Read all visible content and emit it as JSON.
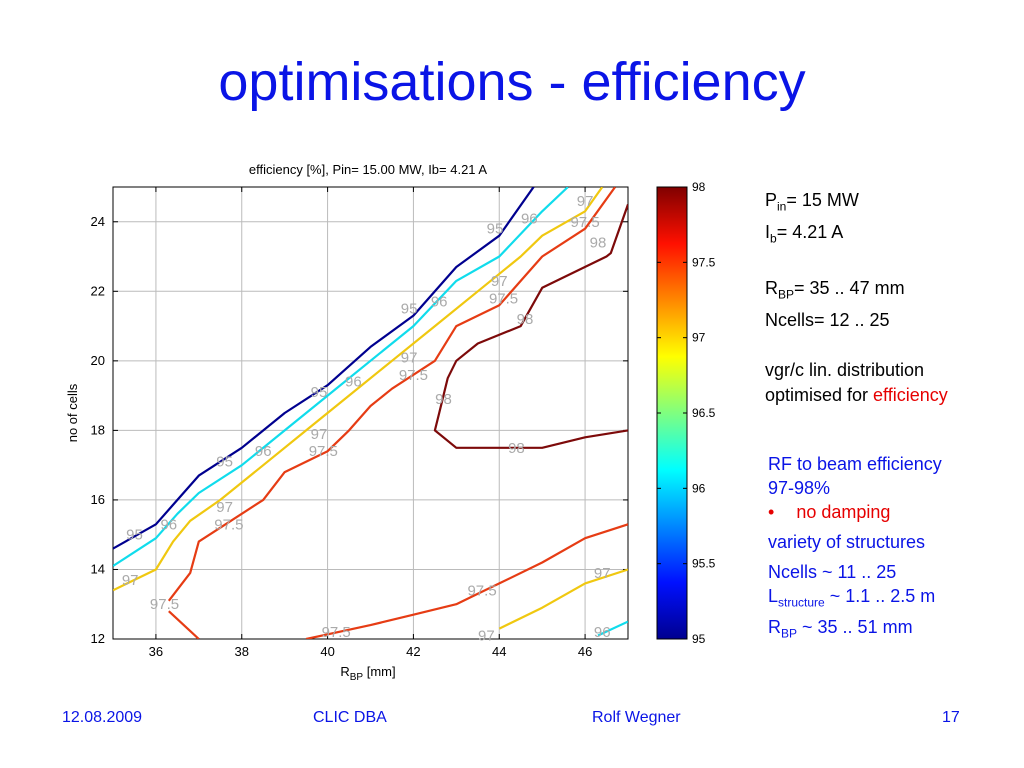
{
  "slide": {
    "title": "optimisations - efficiency",
    "footer": {
      "date": "12.08.2009",
      "event": "CLIC DBA",
      "author": "Rolf Wegner",
      "page": "17"
    }
  },
  "params": {
    "pin_label": "P",
    "pin_sub": "in",
    "pin_value": "= 15 MW",
    "ib_label": "I",
    "ib_sub": "b",
    "ib_value": "= 4.21 A",
    "rbp_label": "R",
    "rbp_sub": "BP",
    "rbp_value": "= 35 .. 47 mm",
    "ncells": "Ncells= 12 .. 25",
    "vgr": "vgr/c  lin. distribution",
    "optimised_prefix": "optimised for ",
    "optimised_target": "efficiency"
  },
  "notes": {
    "line1": "RF to beam efficiency",
    "line2": "97-98%",
    "bullet_marker": "•",
    "bullet": "no damping",
    "line3": "variety of structures",
    "line4": "Ncells ~ 11 .. 25",
    "lstruct_label": "L",
    "lstruct_sub": "structure",
    "lstruct_value": " ~ 1.1 .. 2.5 m",
    "rbp_label": "R",
    "rbp_sub": "BP",
    "rbp_value": " ~ 35 .. 51 mm"
  },
  "chart_data": {
    "type": "contour",
    "title": "efficiency [%],  Pin= 15.00 MW,  Ib= 4.21 A",
    "xlabel": "R",
    "xlabel_sub": "BP",
    "xlabel_unit": " [mm]",
    "ylabel": "no of cells",
    "xlim": [
      35,
      47
    ],
    "ylim": [
      12,
      25
    ],
    "xticks": [
      36,
      38,
      40,
      42,
      44,
      46
    ],
    "yticks": [
      12,
      14,
      16,
      18,
      20,
      22,
      24
    ],
    "grid": true,
    "colorbar": {
      "min": 95,
      "max": 98,
      "ticks": [
        "95",
        "95.5",
        "96",
        "96.5",
        "97",
        "97.5",
        "98"
      ]
    },
    "series": [
      {
        "level": "95",
        "color": "#00008f",
        "segments": [
          [
            [
              35,
              14.6
            ],
            [
              36,
              15.3
            ],
            [
              36.5,
              16
            ],
            [
              37,
              16.7
            ],
            [
              38,
              17.5
            ],
            [
              39,
              18.5
            ],
            [
              40,
              19.3
            ],
            [
              41,
              20.4
            ],
            [
              42,
              21.3
            ],
            [
              43,
              22.7
            ],
            [
              44,
              23.6
            ],
            [
              44.8,
              25
            ]
          ]
        ]
      },
      {
        "level": "96",
        "color": "#10dcec",
        "segments": [
          [
            [
              35,
              14.1
            ],
            [
              36,
              14.9
            ],
            [
              36.5,
              15.6
            ],
            [
              37,
              16.2
            ],
            [
              38,
              17
            ],
            [
              39,
              18
            ],
            [
              40,
              19
            ],
            [
              41,
              20
            ],
            [
              42,
              21
            ],
            [
              43,
              22.3
            ],
            [
              44,
              23
            ],
            [
              45,
              24.3
            ],
            [
              45.6,
              25
            ]
          ]
        ]
      },
      {
        "level": "97",
        "color": "#f0c810",
        "segments": [
          [
            [
              35,
              13.4
            ],
            [
              36,
              14
            ],
            [
              36.4,
              14.8
            ],
            [
              36.8,
              15.4
            ],
            [
              37.5,
              16
            ],
            [
              38.5,
              17
            ],
            [
              39.5,
              18
            ],
            [
              40.5,
              19
            ],
            [
              41.5,
              20
            ],
            [
              42.5,
              21
            ],
            [
              43.5,
              22
            ],
            [
              44.5,
              23
            ],
            [
              45,
              23.6
            ],
            [
              46,
              24.3
            ],
            [
              46.4,
              25
            ]
          ],
          [
            [
              44,
              12.3
            ],
            [
              45,
              12.9
            ],
            [
              46,
              13.6
            ],
            [
              47,
              14
            ]
          ]
        ]
      },
      {
        "level": "97.5",
        "color": "#e63c14",
        "segments": [
          [
            [
              36.3,
              13.1
            ],
            [
              36.8,
              13.9
            ],
            [
              37,
              14.8
            ],
            [
              37.5,
              15.2
            ],
            [
              38.5,
              16
            ],
            [
              39,
              16.8
            ],
            [
              40,
              17.4
            ],
            [
              40.5,
              18
            ],
            [
              41,
              18.7
            ],
            [
              41.5,
              19.2
            ],
            [
              42.5,
              20
            ],
            [
              43,
              21
            ],
            [
              44,
              21.6
            ],
            [
              44.5,
              22.3
            ],
            [
              45,
              23
            ],
            [
              46,
              23.8
            ],
            [
              46.7,
              25
            ]
          ],
          [
            [
              36.3,
              12.8
            ],
            [
              37,
              12
            ]
          ],
          [
            [
              39.5,
              12
            ],
            [
              41,
              12.4
            ],
            [
              42,
              12.7
            ],
            [
              43,
              13
            ],
            [
              43.5,
              13.3
            ],
            [
              44,
              13.6
            ],
            [
              45,
              14.2
            ],
            [
              46,
              14.9
            ],
            [
              47,
              15.3
            ]
          ]
        ]
      },
      {
        "level": "98",
        "color": "#7d0a0a",
        "segments": [
          [
            [
              47,
              24.5
            ],
            [
              46.6,
              23.1
            ],
            [
              46.5,
              23
            ],
            [
              45,
              22.1
            ],
            [
              44.5,
              21
            ],
            [
              43.5,
              20.5
            ],
            [
              43,
              20
            ],
            [
              42.8,
              19.5
            ],
            [
              42.6,
              18.5
            ],
            [
              42.5,
              18
            ],
            [
              43,
              17.5
            ],
            [
              44,
              17.5
            ],
            [
              45,
              17.5
            ],
            [
              46,
              17.8
            ],
            [
              47,
              18
            ]
          ]
        ]
      },
      {
        "level": "96",
        "color": "#10dcec",
        "segments": [
          [
            [
              46.3,
              12.1
            ],
            [
              47,
              12.5
            ]
          ]
        ]
      }
    ],
    "labels": [
      {
        "text": "95",
        "x": 35.5,
        "y": 15.0,
        "color": "#00008f"
      },
      {
        "text": "96",
        "x": 36.3,
        "y": 15.3,
        "color": "#10dcec"
      },
      {
        "text": "97",
        "x": 35.4,
        "y": 13.7,
        "color": "#f0c810"
      },
      {
        "text": "97.5",
        "x": 36.2,
        "y": 13.0,
        "color": "#e63c14"
      },
      {
        "text": "95",
        "x": 37.6,
        "y": 17.1,
        "color": "#00008f"
      },
      {
        "text": "96",
        "x": 38.5,
        "y": 17.4,
        "color": "#10dcec"
      },
      {
        "text": "97",
        "x": 37.6,
        "y": 15.8,
        "color": "#f0c810"
      },
      {
        "text": "97.5",
        "x": 37.7,
        "y": 15.3,
        "color": "#e63c14"
      },
      {
        "text": "95",
        "x": 39.8,
        "y": 19.1,
        "color": "#00008f"
      },
      {
        "text": "96",
        "x": 40.6,
        "y": 19.4,
        "color": "#10dcec"
      },
      {
        "text": "97",
        "x": 39.8,
        "y": 17.9,
        "color": "#f0c810"
      },
      {
        "text": "97.5",
        "x": 39.9,
        "y": 17.4,
        "color": "#e63c14"
      },
      {
        "text": "95",
        "x": 41.9,
        "y": 21.5,
        "color": "#00008f"
      },
      {
        "text": "96",
        "x": 42.6,
        "y": 21.7,
        "color": "#10dcec"
      },
      {
        "text": "97",
        "x": 41.9,
        "y": 20.1,
        "color": "#f0c810"
      },
      {
        "text": "97.5",
        "x": 42.0,
        "y": 19.6,
        "color": "#e63c14"
      },
      {
        "text": "98",
        "x": 42.7,
        "y": 18.9,
        "color": "#7d0a0a"
      },
      {
        "text": "95",
        "x": 43.9,
        "y": 23.8,
        "color": "#00008f"
      },
      {
        "text": "96",
        "x": 44.7,
        "y": 24.1,
        "color": "#10dcec"
      },
      {
        "text": "97",
        "x": 44.0,
        "y": 22.3,
        "color": "#f0c810"
      },
      {
        "text": "97.5",
        "x": 44.1,
        "y": 21.8,
        "color": "#e63c14"
      },
      {
        "text": "98",
        "x": 44.6,
        "y": 21.2,
        "color": "#7d0a0a"
      },
      {
        "text": "97",
        "x": 46.0,
        "y": 24.6,
        "color": "#f0c810"
      },
      {
        "text": "97.5",
        "x": 46.0,
        "y": 24.0,
        "color": "#e63c14"
      },
      {
        "text": "98",
        "x": 46.3,
        "y": 23.4,
        "color": "#7d0a0a"
      },
      {
        "text": "98",
        "x": 44.4,
        "y": 17.5,
        "color": "#7d0a0a"
      },
      {
        "text": "97.5",
        "x": 43.6,
        "y": 13.4,
        "color": "#e63c14"
      },
      {
        "text": "97",
        "x": 46.4,
        "y": 13.9,
        "color": "#f0c810"
      },
      {
        "text": "97.5",
        "x": 40.2,
        "y": 12.2,
        "color": "#e63c14"
      },
      {
        "text": "97",
        "x": 43.7,
        "y": 12.1,
        "color": "#f0c810"
      },
      {
        "text": "96",
        "x": 46.4,
        "y": 12.2,
        "color": "#10dcec"
      }
    ]
  }
}
